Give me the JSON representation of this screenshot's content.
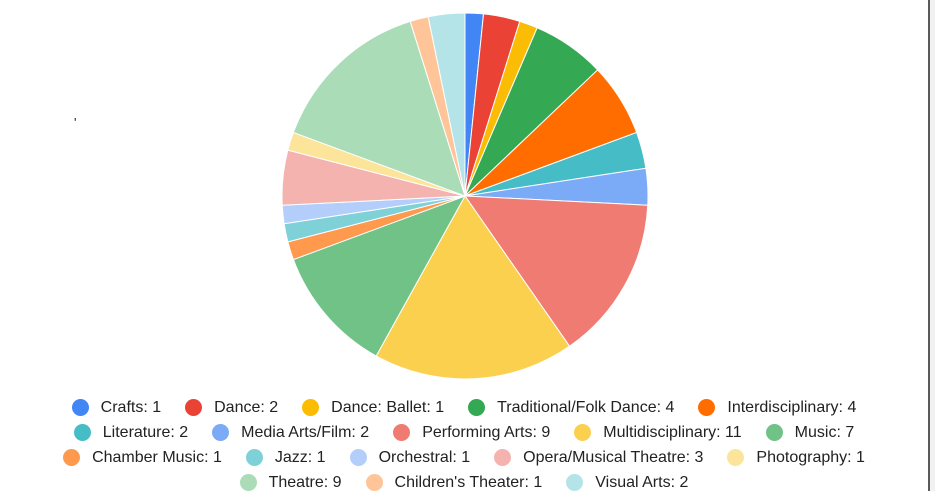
{
  "chart_data": {
    "type": "pie",
    "slices": [
      {
        "label": "Crafts",
        "value": 1,
        "color": "#4285f4"
      },
      {
        "label": "Dance",
        "value": 2,
        "color": "#ea4335"
      },
      {
        "label": "Dance: Ballet",
        "value": 1,
        "color": "#fbbc04"
      },
      {
        "label": "Traditional/Folk Dance",
        "value": 4,
        "color": "#34a853"
      },
      {
        "label": "Interdisciplinary",
        "value": 4,
        "color": "#ff6d01"
      },
      {
        "label": "Literature",
        "value": 2,
        "color": "#46bdc6"
      },
      {
        "label": "Media Arts/Film",
        "value": 2,
        "color": "#7baaf7"
      },
      {
        "label": "Performing Arts",
        "value": 9,
        "color": "#f07b72"
      },
      {
        "label": "Multidisciplinary",
        "value": 11,
        "color": "#fcd04f"
      },
      {
        "label": "Music",
        "value": 7,
        "color": "#71c287"
      },
      {
        "label": "Chamber Music",
        "value": 1,
        "color": "#ff994d"
      },
      {
        "label": "Jazz",
        "value": 1,
        "color": "#7ed1d7"
      },
      {
        "label": "Orchestral",
        "value": 1,
        "color": "#b3cefb"
      },
      {
        "label": "Opera/Musical Theatre",
        "value": 3,
        "color": "#f4b3ae"
      },
      {
        "label": "Photography",
        "value": 1,
        "color": "#fde49b"
      },
      {
        "label": "Theatre",
        "value": 9,
        "color": "#aadcb7"
      },
      {
        "label": "Children's Theater",
        "value": 1,
        "color": "#ffc599"
      },
      {
        "label": "Visual Arts",
        "value": 2,
        "color": "#b5e4e8"
      }
    ],
    "legend_position": "bottom",
    "start_angle": "top, clockwise"
  },
  "legend": {
    "rows": [
      [
        "Crafts: 1",
        "Dance: 2",
        "Dance: Ballet: 1",
        "Traditional/Folk Dance: 4",
        "Interdisciplinary: 4"
      ],
      [
        "Literature: 2",
        "Media Arts/Film: 2",
        "Performing Arts: 9",
        "Multidisciplinary: 11",
        "Music: 7"
      ],
      [
        "Chamber Music: 1",
        "Jazz: 1",
        "Orchestral: 1",
        "Opera/Musical Theatre: 3",
        "Photography: 1"
      ],
      [
        "Theatre: 9",
        "Children's Theater: 1",
        "Visual Arts: 2"
      ]
    ]
  }
}
